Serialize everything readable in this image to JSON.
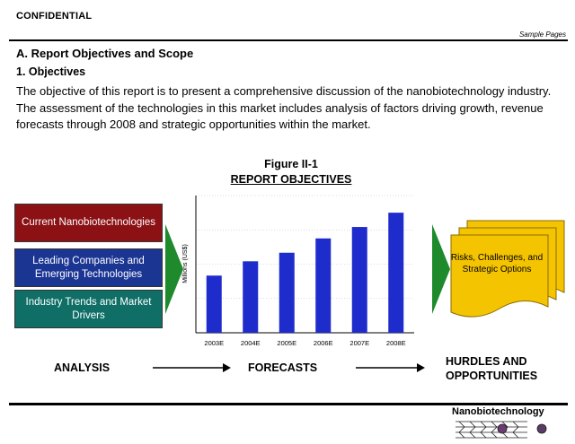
{
  "header": {
    "confidential": "CONFIDENTIAL",
    "sample_pages": "Sample Pages"
  },
  "section_title": "A.  Report Objectives and Scope",
  "subsection_title": "1.  Objectives",
  "paragraph": "The objective of this report is to present a comprehensive discussion of the nanobiotechnology industry.  The assessment of the technologies in this market includes analysis of factors driving growth, revenue forecasts through 2008 and strategic opportunities within the market.",
  "figure": {
    "number": "Figure II-1",
    "title": "REPORT OBJECTIVES"
  },
  "analysis_boxes": [
    {
      "label": "Current Nanobiotechnologies",
      "color": "#8b1115"
    },
    {
      "label": "Leading Companies and Emerging Technologies",
      "color": "#1b3593"
    },
    {
      "label": "Industry Trends and Market Drivers",
      "color": "#0f6e66"
    }
  ],
  "chart_data": {
    "type": "bar",
    "categories": [
      "2003E",
      "2004E",
      "2005E",
      "2006E",
      "2007E",
      "2008E"
    ],
    "values": [
      1.0,
      1.25,
      1.4,
      1.65,
      1.85,
      2.1
    ],
    "ylabel": "Millions (US$)",
    "xlabel": "",
    "ylim": [
      0,
      2.4
    ],
    "bar_color": "#1f2ccc"
  },
  "documents_text": "Risks, Challenges, and Strategic Options",
  "flow_labels": {
    "analysis": "ANALYSIS",
    "forecasts": "FORECASTS",
    "hurdles_line1": "HURDLES AND",
    "hurdles_line2": "OPPORTUNITIES"
  },
  "footer": {
    "brand": "Nanobiotechnology"
  },
  "colors": {
    "arrow_green": "#1f8a2c",
    "doc_yellow": "#f5c400",
    "doc_border": "#8a6b00"
  }
}
